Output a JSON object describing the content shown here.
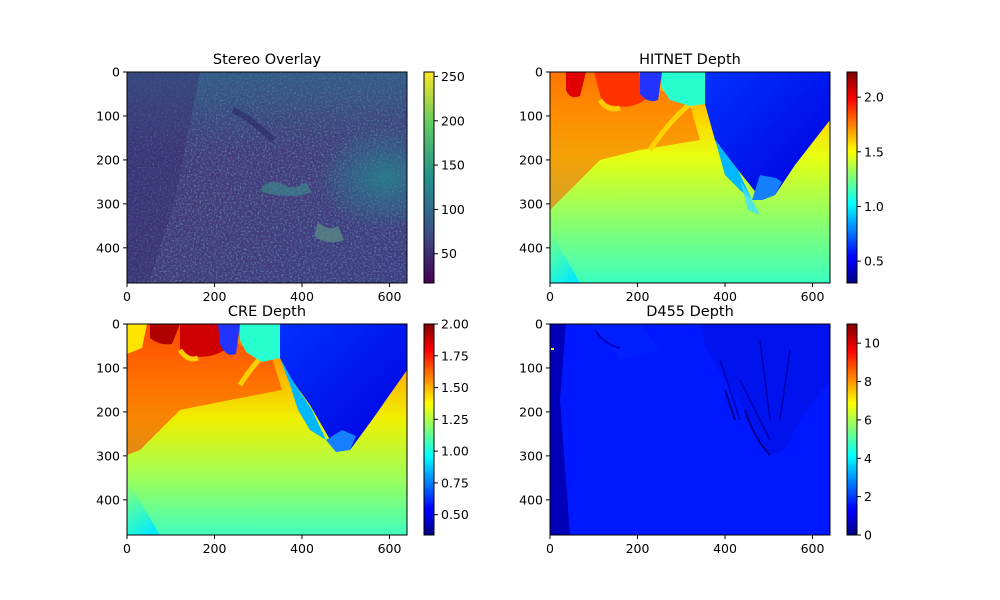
{
  "chart_data": [
    {
      "type": "heatmap",
      "title": "Stereo Overlay",
      "colormap": "viridis",
      "xlim": [
        0,
        640
      ],
      "ylim": [
        480,
        0
      ],
      "xticks": [
        "0",
        "200",
        "400",
        "600"
      ],
      "yticks": [
        "0",
        "100",
        "200",
        "300",
        "400"
      ],
      "colorbar": {
        "min": 17,
        "max": 255,
        "ticks": [
          "50",
          "100",
          "150",
          "200",
          "250"
        ],
        "tick_values": [
          50,
          100,
          150,
          200,
          250
        ]
      }
    },
    {
      "type": "heatmap",
      "title": "HITNET Depth",
      "colormap": "jet",
      "xlim": [
        0,
        640
      ],
      "ylim": [
        480,
        0
      ],
      "xticks": [
        "0",
        "200",
        "400",
        "600"
      ],
      "yticks": [
        "0",
        "100",
        "200",
        "300",
        "400"
      ],
      "colorbar": {
        "min": 0.3,
        "max": 2.23,
        "ticks": [
          "0.5",
          "1.0",
          "1.5",
          "2.0"
        ],
        "tick_values": [
          0.5,
          1.0,
          1.5,
          2.0
        ]
      }
    },
    {
      "type": "heatmap",
      "title": "CRE Depth",
      "colormap": "jet",
      "xlim": [
        0,
        640
      ],
      "ylim": [
        480,
        0
      ],
      "xticks": [
        "0",
        "200",
        "400",
        "600"
      ],
      "yticks": [
        "0",
        "100",
        "200",
        "300",
        "400"
      ],
      "colorbar": {
        "min": 0.34,
        "max": 2.0,
        "ticks": [
          "0.50",
          "0.75",
          "1.00",
          "1.25",
          "1.50",
          "1.75",
          "2.00"
        ],
        "tick_values": [
          0.5,
          0.75,
          1.0,
          1.25,
          1.5,
          1.75,
          2.0
        ]
      }
    },
    {
      "type": "heatmap",
      "title": "D455 Depth",
      "colormap": "jet",
      "xlim": [
        0,
        640
      ],
      "ylim": [
        480,
        0
      ],
      "xticks": [
        "0",
        "200",
        "400",
        "600"
      ],
      "yticks": [
        "0",
        "100",
        "200",
        "300",
        "400"
      ],
      "colorbar": {
        "min": 0,
        "max": 11,
        "ticks": [
          "0",
          "2",
          "4",
          "6",
          "8",
          "10"
        ],
        "tick_values": [
          0,
          2,
          4,
          6,
          8,
          10
        ]
      }
    }
  ]
}
